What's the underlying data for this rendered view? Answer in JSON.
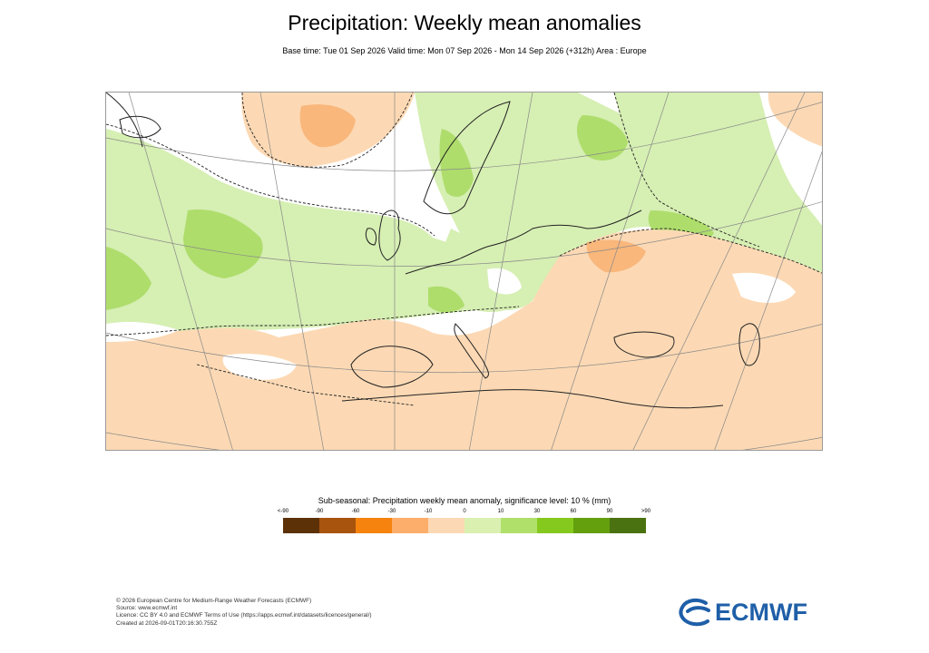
{
  "title": "Precipitation: Weekly mean anomalies",
  "subtitle": "Base time: Tue 01 Sep 2026 Valid time: Mon 07 Sep 2026 - Mon 14 Sep 2026 (+312h) Area : Europe",
  "legend": {
    "title": "Sub-seasonal: Precipitation weekly mean anomaly, significance level: 10 % (mm)",
    "ticks": [
      "<-90",
      "-90",
      "-60",
      "-30",
      "-10",
      "0",
      "10",
      "30",
      "60",
      "90",
      ">90"
    ],
    "colors": [
      "#5c3108",
      "#a8540e",
      "#f5830e",
      "#fcae6a",
      "#fcd9b4",
      "#d9f0b0",
      "#b0e06a",
      "#86c91e",
      "#64a00e",
      "#4a7210"
    ]
  },
  "map": {
    "colors": {
      "light_green": "#d6efb3",
      "mid_green": "#aedd6c",
      "light_orange": "#fcd9b4",
      "mid_orange": "#f9b77c",
      "border": "#222222",
      "grid": "#888888"
    }
  },
  "footer": [
    "© 2026 European Centre for Medium-Range Weather Forecasts (ECMWF)",
    "Source: www.ecmwf.int",
    "Licence: CC BY 4.0 and ECMWF Terms of Use (https://apps.ecmwf.int/datasets/licences/general/)",
    "Created at 2026-09-01T20:16:30.755Z"
  ],
  "logo": {
    "text": "ECMWF",
    "color": "#1f5fa8"
  }
}
